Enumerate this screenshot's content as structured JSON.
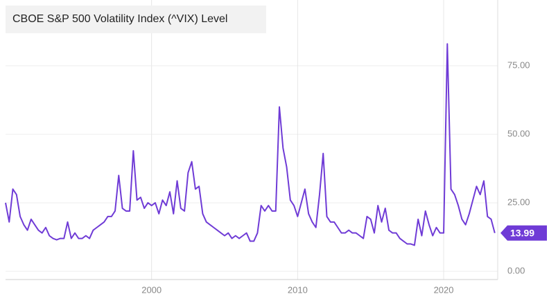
{
  "chart_data": {
    "type": "line",
    "title": "CBOE S&P 500 Volatility Index (^VIX) Level",
    "color": "#6f3bd6",
    "x": [
      1990,
      1990.25,
      1990.5,
      1990.75,
      1991,
      1991.25,
      1991.5,
      1991.75,
      1992,
      1992.25,
      1992.5,
      1992.75,
      1993,
      1993.25,
      1993.5,
      1993.75,
      1994,
      1994.25,
      1994.5,
      1994.75,
      1995,
      1995.25,
      1995.5,
      1995.75,
      1996,
      1996.25,
      1996.5,
      1996.75,
      1997,
      1997.25,
      1997.5,
      1997.75,
      1998,
      1998.25,
      1998.5,
      1998.75,
      1999,
      1999.25,
      1999.5,
      1999.75,
      2000,
      2000.25,
      2000.5,
      2000.75,
      2001,
      2001.25,
      2001.5,
      2001.75,
      2002,
      2002.25,
      2002.5,
      2002.75,
      2003,
      2003.25,
      2003.5,
      2003.75,
      2004,
      2004.25,
      2004.5,
      2004.75,
      2005,
      2005.25,
      2005.5,
      2005.75,
      2006,
      2006.25,
      2006.5,
      2006.75,
      2007,
      2007.25,
      2007.5,
      2007.75,
      2008,
      2008.25,
      2008.5,
      2008.75,
      2009,
      2009.25,
      2009.5,
      2009.75,
      2010,
      2010.25,
      2010.5,
      2010.75,
      2011,
      2011.25,
      2011.5,
      2011.75,
      2012,
      2012.25,
      2012.5,
      2012.75,
      2013,
      2013.25,
      2013.5,
      2013.75,
      2014,
      2014.25,
      2014.5,
      2014.75,
      2015,
      2015.25,
      2015.5,
      2015.75,
      2016,
      2016.25,
      2016.5,
      2016.75,
      2017,
      2017.25,
      2017.5,
      2017.75,
      2018,
      2018.25,
      2018.5,
      2018.75,
      2019,
      2019.25,
      2019.5,
      2019.75,
      2020,
      2020.25,
      2020.5,
      2020.75,
      2021,
      2021.25,
      2021.5,
      2021.75,
      2022,
      2022.25,
      2022.5,
      2022.75,
      2023,
      2023.25,
      2023.5
    ],
    "values": [
      25,
      18,
      30,
      28,
      20,
      17,
      15,
      19,
      17,
      15,
      14,
      16,
      13,
      12,
      11.5,
      12,
      12,
      18,
      12,
      14,
      12,
      12,
      13,
      12,
      15,
      16,
      17,
      18,
      20,
      20,
      22,
      35,
      23,
      22,
      22,
      44,
      26,
      27,
      23,
      25,
      24,
      25,
      21,
      26,
      24,
      29,
      21,
      33,
      23,
      22,
      36,
      40,
      30,
      31,
      21,
      18,
      17,
      16,
      15,
      14,
      13,
      14,
      12,
      13,
      12,
      13,
      14,
      11,
      11,
      14,
      24,
      22,
      24,
      22,
      22,
      60,
      45,
      38,
      26,
      24,
      20,
      25,
      30,
      21,
      18,
      16,
      28,
      43,
      20,
      18,
      18,
      16,
      14,
      14,
      15,
      14,
      14,
      13,
      12,
      20,
      19,
      14,
      24,
      18,
      23,
      15,
      14,
      14,
      12,
      11,
      10,
      10,
      9.5,
      19,
      13,
      22,
      17,
      13,
      16,
      14,
      14,
      83,
      30,
      28,
      24,
      19,
      17,
      21,
      26,
      31,
      28,
      33,
      20,
      19,
      13.99
    ],
    "xlim": [
      1990,
      2023.7
    ],
    "xticks": [
      2000,
      2010,
      2020
    ],
    "ylim": [
      -3,
      99
    ],
    "yticks": [
      {
        "value": 0,
        "label": "0.00"
      },
      {
        "value": 25,
        "label": "25.00"
      },
      {
        "value": 50,
        "label": "50.00"
      },
      {
        "value": 75,
        "label": "75.00"
      }
    ],
    "grid": true
  }
}
